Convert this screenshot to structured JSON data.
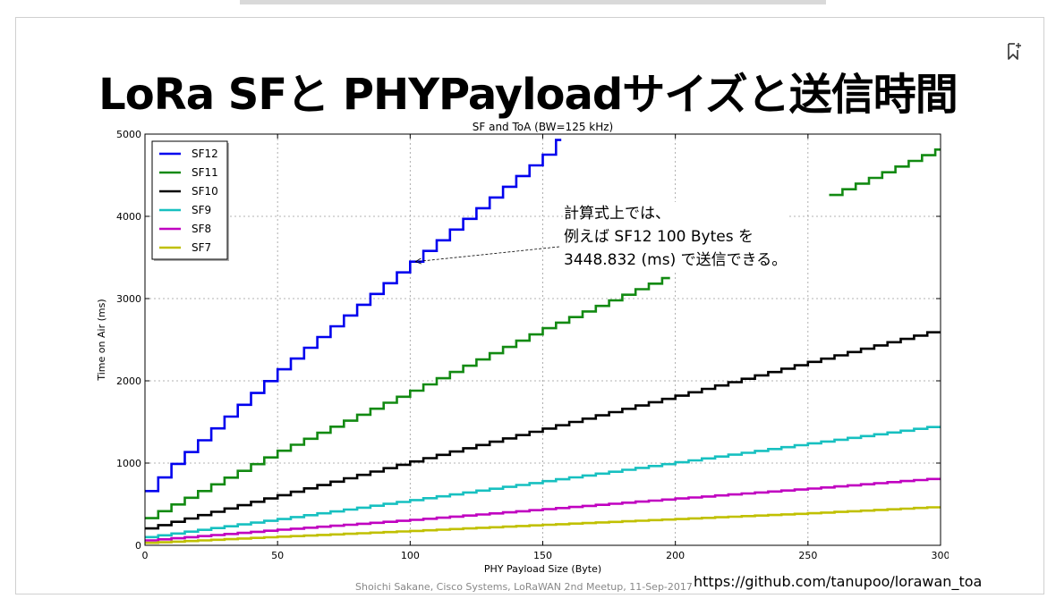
{
  "slide": {
    "title": "LoRa SFと PHYPayloadサイズと送信時間",
    "annotation": {
      "lines": [
        "計算式上では、",
        "例えば SF12 100 Bytes を",
        "3448.832 (ms) で送信できる。"
      ]
    },
    "url": "https://github.com/tanupoo/lorawan_toa",
    "footer": "Shoichi Sakane, Cisco Systems, LoRaWAN 2nd Meetup, 11-Sep-2017",
    "icons": {
      "bookmark": "bookmark-add-icon"
    }
  },
  "chart_data": {
    "type": "line",
    "title": "SF and ToA (BW=125 kHz)",
    "xlabel": "PHY Payload Size (Byte)",
    "ylabel": "Time on Air (ms)",
    "xlim": [
      0,
      300
    ],
    "ylim": [
      0,
      5000
    ],
    "xticks": [
      "0",
      "50",
      "100",
      "150",
      "200",
      "250",
      "300"
    ],
    "yticks": [
      "0",
      "1000",
      "2000",
      "3000",
      "4000",
      "5000"
    ],
    "grid": true,
    "legend_position": "top-left",
    "step": "staircase",
    "series": [
      {
        "name": "SF12",
        "color": "#0000ee",
        "points": [
          [
            0,
            660
          ],
          [
            5,
            825
          ],
          [
            10,
            990
          ],
          [
            50,
            2140
          ],
          [
            100,
            3448.832
          ],
          [
            150,
            4750
          ],
          [
            157,
            5000
          ]
        ]
      },
      {
        "name": "SF11",
        "color": "#128a12",
        "points": [
          [
            0,
            330
          ],
          [
            5,
            415
          ],
          [
            50,
            1150
          ],
          [
            100,
            1880
          ],
          [
            150,
            2640
          ],
          [
            198,
            3290
          ]
        ]
      },
      {
        "name": "SF11",
        "color": "#128a12",
        "points": [
          [
            258,
            4260
          ],
          [
            300,
            4840
          ]
        ]
      },
      {
        "name": "SF10",
        "color": "#000000",
        "points": [
          [
            0,
            205
          ],
          [
            50,
            610
          ],
          [
            100,
            1020
          ],
          [
            150,
            1420
          ],
          [
            200,
            1820
          ],
          [
            250,
            2230
          ],
          [
            300,
            2630
          ]
        ]
      },
      {
        "name": "SF9",
        "color": "#17c0c0",
        "points": [
          [
            0,
            100
          ],
          [
            50,
            320
          ],
          [
            100,
            550
          ],
          [
            150,
            780
          ],
          [
            200,
            1010
          ],
          [
            250,
            1240
          ],
          [
            300,
            1460
          ]
        ]
      },
      {
        "name": "SF8",
        "color": "#c000c0",
        "points": [
          [
            0,
            60
          ],
          [
            50,
            190
          ],
          [
            100,
            310
          ],
          [
            150,
            440
          ],
          [
            200,
            570
          ],
          [
            250,
            690
          ],
          [
            300,
            820
          ]
        ]
      },
      {
        "name": "SF7",
        "color": "#c0c000",
        "points": [
          [
            0,
            30
          ],
          [
            50,
            105
          ],
          [
            100,
            175
          ],
          [
            150,
            250
          ],
          [
            200,
            320
          ],
          [
            250,
            390
          ],
          [
            300,
            470
          ]
        ]
      }
    ],
    "legend": [
      {
        "name": "SF12",
        "color": "#0000ee"
      },
      {
        "name": "SF11",
        "color": "#128a12"
      },
      {
        "name": "SF10",
        "color": "#000000"
      },
      {
        "name": "SF9",
        "color": "#17c0c0"
      },
      {
        "name": "SF8",
        "color": "#c000c0"
      },
      {
        "name": "SF7",
        "color": "#c0c000"
      }
    ],
    "annotation_arrow_target": [
      100,
      3448.832
    ]
  }
}
